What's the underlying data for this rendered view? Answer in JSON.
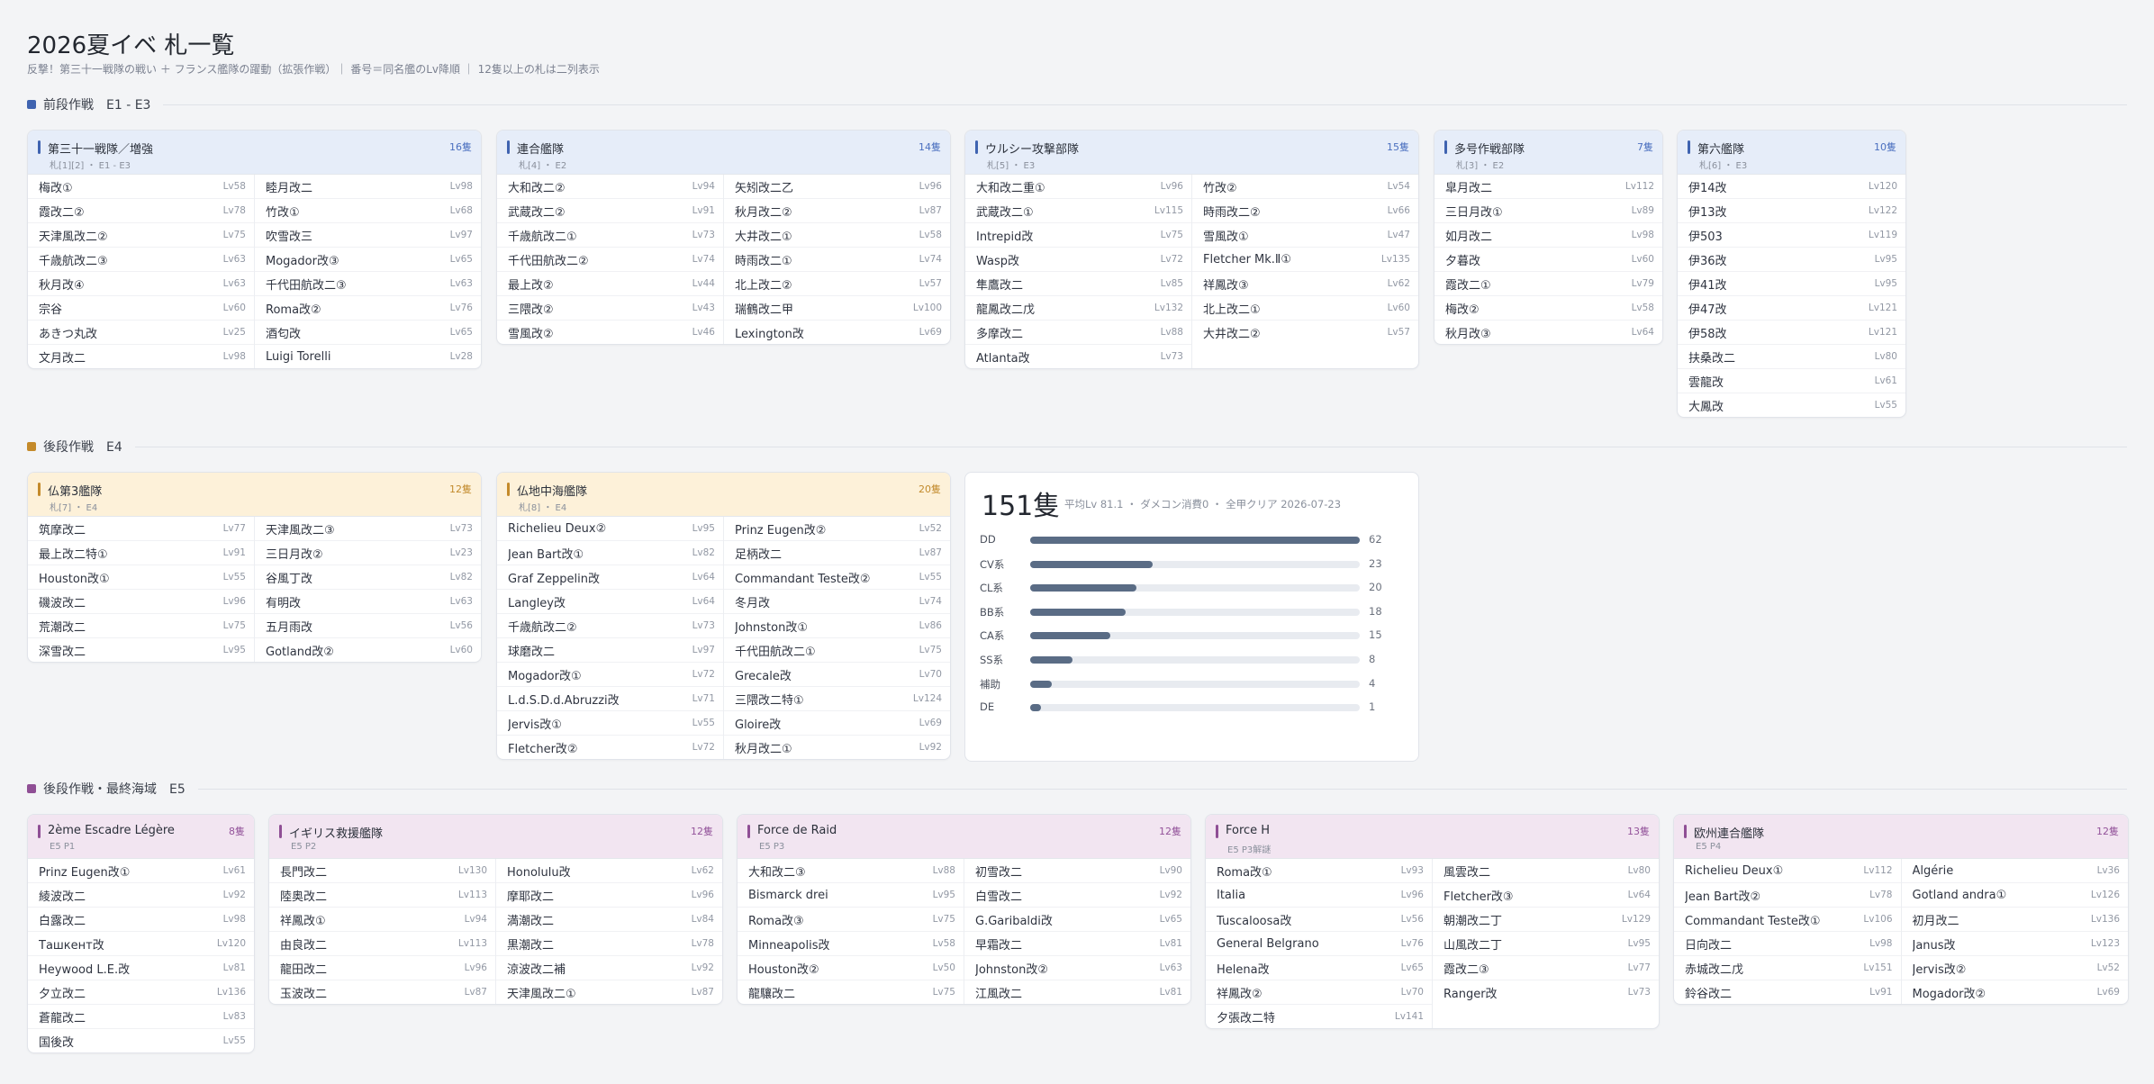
{
  "title": "2026夏イベ 札一覧",
  "subtitle": "反撃！第三十一戦隊の戦い ＋ フランス艦隊の躍動（拡張作戦）｜ 番号＝同名艦のLv降順 ｜ 12隻以上の札は二列表示",
  "colors": {
    "blue": "#3f63b0",
    "orange": "#c48a2a",
    "purple": "#8f4f95"
  },
  "sections": [
    {
      "label": "前段作戦　E1 - E3",
      "color": "#3f63b0"
    },
    {
      "label": "後段作戦　E4",
      "color": "#c48a2a"
    },
    {
      "label": "後段作戦・最終海域　E5",
      "color": "#8f4f95"
    }
  ],
  "cards": [
    {
      "theme": "blue",
      "name": "第三十一戦隊／増強",
      "sub": "札[1][2] ・ E1 - E3",
      "count": "16隻",
      "cols": [
        [
          [
            "梅改①",
            "Lv58"
          ],
          [
            "霞改二②",
            "Lv78"
          ],
          [
            "天津風改二②",
            "Lv75"
          ],
          [
            "千歳航改二③",
            "Lv63"
          ],
          [
            "秋月改④",
            "Lv63"
          ],
          [
            "宗谷",
            "Lv60"
          ],
          [
            "あきつ丸改",
            "Lv25"
          ],
          [
            "文月改二",
            "Lv98"
          ]
        ],
        [
          [
            "睦月改二",
            "Lv98"
          ],
          [
            "竹改①",
            "Lv68"
          ],
          [
            "吹雪改三",
            "Lv97"
          ],
          [
            "Mogador改③",
            "Lv65"
          ],
          [
            "千代田航改二③",
            "Lv63"
          ],
          [
            "Roma改②",
            "Lv76"
          ],
          [
            "酒匂改",
            "Lv65"
          ],
          [
            "Luigi Torelli",
            "Lv28"
          ]
        ]
      ]
    },
    {
      "theme": "blue",
      "name": "連合艦隊",
      "sub": "札[4] ・ E2",
      "count": "14隻",
      "cols": [
        [
          [
            "大和改二②",
            "Lv94"
          ],
          [
            "武蔵改二②",
            "Lv91"
          ],
          [
            "千歳航改二①",
            "Lv73"
          ],
          [
            "千代田航改二②",
            "Lv74"
          ],
          [
            "最上改②",
            "Lv44"
          ],
          [
            "三隈改②",
            "Lv43"
          ],
          [
            "雪風改②",
            "Lv46"
          ]
        ],
        [
          [
            "矢矧改二乙",
            "Lv96"
          ],
          [
            "秋月改二②",
            "Lv87"
          ],
          [
            "大井改二①",
            "Lv58"
          ],
          [
            "時雨改二①",
            "Lv74"
          ],
          [
            "北上改二②",
            "Lv57"
          ],
          [
            "瑞鶴改二甲",
            "Lv100"
          ],
          [
            "Lexington改",
            "Lv69"
          ]
        ]
      ]
    },
    {
      "theme": "blue",
      "name": "ウルシー攻撃部隊",
      "sub": "札[5] ・ E3",
      "count": "15隻",
      "cols": [
        [
          [
            "大和改二重①",
            "Lv96"
          ],
          [
            "武蔵改二①",
            "Lv115"
          ],
          [
            "Intrepid改",
            "Lv75"
          ],
          [
            "Wasp改",
            "Lv72"
          ],
          [
            "隼鷹改二",
            "Lv85"
          ],
          [
            "龍鳳改二戊",
            "Lv132"
          ],
          [
            "多摩改二",
            "Lv88"
          ],
          [
            "Atlanta改",
            "Lv73"
          ]
        ],
        [
          [
            "竹改②",
            "Lv54"
          ],
          [
            "時雨改二②",
            "Lv66"
          ],
          [
            "雪風改①",
            "Lv47"
          ],
          [
            "Fletcher Mk.Ⅱ①",
            "Lv135"
          ],
          [
            "祥鳳改③",
            "Lv62"
          ],
          [
            "北上改二①",
            "Lv60"
          ],
          [
            "大井改二②",
            "Lv57"
          ]
        ]
      ]
    },
    {
      "theme": "blue",
      "name": "多号作戦部隊",
      "sub": "札[3] ・ E2",
      "count": "7隻",
      "cols": [
        [
          [
            "皐月改二",
            "Lv112"
          ],
          [
            "三日月改①",
            "Lv89"
          ],
          [
            "如月改二",
            "Lv98"
          ],
          [
            "夕暮改",
            "Lv60"
          ],
          [
            "霞改二①",
            "Lv79"
          ],
          [
            "梅改②",
            "Lv58"
          ],
          [
            "秋月改③",
            "Lv64"
          ]
        ]
      ]
    },
    {
      "theme": "blue",
      "name": "第六艦隊",
      "sub": "札[6] ・ E3",
      "count": "10隻",
      "cols": [
        [
          [
            "伊14改",
            "Lv120"
          ],
          [
            "伊13改",
            "Lv122"
          ],
          [
            "伊503",
            "Lv119"
          ],
          [
            "伊36改",
            "Lv95"
          ],
          [
            "伊41改",
            "Lv95"
          ],
          [
            "伊47改",
            "Lv121"
          ],
          [
            "伊58改",
            "Lv121"
          ],
          [
            "扶桑改二",
            "Lv80"
          ],
          [
            "雲龍改",
            "Lv61"
          ],
          [
            "大鳳改",
            "Lv55"
          ]
        ]
      ]
    },
    {
      "theme": "orange",
      "name": "仏第3艦隊",
      "sub": "札[7] ・ E4",
      "count": "12隻",
      "cols": [
        [
          [
            "筑摩改二",
            "Lv77"
          ],
          [
            "最上改二特①",
            "Lv91"
          ],
          [
            "Houston改①",
            "Lv55"
          ],
          [
            "磯波改二",
            "Lv96"
          ],
          [
            "荒潮改二",
            "Lv75"
          ],
          [
            "深雪改二",
            "Lv95"
          ]
        ],
        [
          [
            "天津風改二③",
            "Lv73"
          ],
          [
            "三日月改②",
            "Lv23"
          ],
          [
            "谷風丁改",
            "Lv82"
          ],
          [
            "有明改",
            "Lv63"
          ],
          [
            "五月雨改",
            "Lv56"
          ],
          [
            "Gotland改②",
            "Lv60"
          ]
        ]
      ]
    },
    {
      "theme": "orange",
      "name": "仏地中海艦隊",
      "sub": "札[8] ・ E4",
      "count": "20隻",
      "cols": [
        [
          [
            "Richelieu Deux②",
            "Lv95"
          ],
          [
            "Jean Bart改①",
            "Lv82"
          ],
          [
            "Graf Zeppelin改",
            "Lv64"
          ],
          [
            "Langley改",
            "Lv64"
          ],
          [
            "千歳航改二②",
            "Lv73"
          ],
          [
            "球磨改二",
            "Lv97"
          ],
          [
            "Mogador改①",
            "Lv72"
          ],
          [
            "L.d.S.D.d.Abruzzi改",
            "Lv71"
          ],
          [
            "Jervis改①",
            "Lv55"
          ],
          [
            "Fletcher改②",
            "Lv72"
          ]
        ],
        [
          [
            "Prinz Eugen改②",
            "Lv52"
          ],
          [
            "足柄改二",
            "Lv87"
          ],
          [
            "Commandant Teste改②",
            "Lv55"
          ],
          [
            "冬月改",
            "Lv74"
          ],
          [
            "Johnston改①",
            "Lv86"
          ],
          [
            "千代田航改二①",
            "Lv75"
          ],
          [
            "Grecale改",
            "Lv70"
          ],
          [
            "三隈改二特①",
            "Lv124"
          ],
          [
            "Gloire改",
            "Lv69"
          ],
          [
            "秋月改二①",
            "Lv92"
          ]
        ]
      ]
    },
    {
      "theme": "purple",
      "name": "2ème Escadre Légère",
      "sub": "E5 P1",
      "count": "8隻",
      "cols": [
        [
          [
            "Prinz Eugen改①",
            "Lv61"
          ],
          [
            "綾波改二",
            "Lv92"
          ],
          [
            "白露改二",
            "Lv98"
          ],
          [
            "Ташкент改",
            "Lv120"
          ],
          [
            "Heywood L.E.改",
            "Lv81"
          ],
          [
            "夕立改二",
            "Lv136"
          ],
          [
            "蒼龍改二",
            "Lv83"
          ],
          [
            "国後改",
            "Lv55"
          ]
        ]
      ]
    },
    {
      "theme": "purple",
      "name": "イギリス救援艦隊",
      "sub": "E5 P2",
      "count": "12隻",
      "cols": [
        [
          [
            "長門改二",
            "Lv130"
          ],
          [
            "陸奥改二",
            "Lv113"
          ],
          [
            "祥鳳改①",
            "Lv94"
          ],
          [
            "由良改二",
            "Lv113"
          ],
          [
            "龍田改二",
            "Lv96"
          ],
          [
            "玉波改二",
            "Lv87"
          ]
        ],
        [
          [
            "Honolulu改",
            "Lv62"
          ],
          [
            "摩耶改二",
            "Lv96"
          ],
          [
            "満潮改二",
            "Lv84"
          ],
          [
            "黒潮改二",
            "Lv78"
          ],
          [
            "涼波改二補",
            "Lv92"
          ],
          [
            "天津風改二①",
            "Lv87"
          ]
        ]
      ]
    },
    {
      "theme": "purple",
      "name": "Force de Raid",
      "sub": "E5 P3",
      "count": "12隻",
      "cols": [
        [
          [
            "大和改二③",
            "Lv88"
          ],
          [
            "Bismarck drei",
            "Lv95"
          ],
          [
            "Roma改③",
            "Lv75"
          ],
          [
            "Minneapolis改",
            "Lv58"
          ],
          [
            "Houston改②",
            "Lv50"
          ],
          [
            "龍驤改二",
            "Lv75"
          ]
        ],
        [
          [
            "初雪改二",
            "Lv90"
          ],
          [
            "白雪改二",
            "Lv92"
          ],
          [
            "G.Garibaldi改",
            "Lv65"
          ],
          [
            "早霜改二",
            "Lv81"
          ],
          [
            "Johnston改②",
            "Lv63"
          ],
          [
            "江風改二",
            "Lv81"
          ]
        ]
      ]
    },
    {
      "theme": "purple",
      "name": "Force H",
      "sub": "E5 P3解謎",
      "count": "13隻",
      "cols": [
        [
          [
            "Roma改①",
            "Lv93"
          ],
          [
            "Italia",
            "Lv96"
          ],
          [
            "Tuscaloosa改",
            "Lv56"
          ],
          [
            "General Belgrano",
            "Lv76"
          ],
          [
            "Helena改",
            "Lv65"
          ],
          [
            "祥鳳改②",
            "Lv70"
          ],
          [
            "夕張改二特",
            "Lv141"
          ]
        ],
        [
          [
            "風雲改二",
            "Lv80"
          ],
          [
            "Fletcher改③",
            "Lv64"
          ],
          [
            "朝潮改二丁",
            "Lv129"
          ],
          [
            "山風改二丁",
            "Lv95"
          ],
          [
            "霞改二③",
            "Lv77"
          ],
          [
            "Ranger改",
            "Lv73"
          ]
        ]
      ]
    },
    {
      "theme": "purple",
      "name": "欧州連合艦隊",
      "sub": "E5 P4",
      "count": "12隻",
      "cols": [
        [
          [
            "Richelieu Deux①",
            "Lv112"
          ],
          [
            "Jean Bart改②",
            "Lv78"
          ],
          [
            "Commandant Teste改①",
            "Lv106"
          ],
          [
            "日向改二",
            "Lv98"
          ],
          [
            "赤城改二戊",
            "Lv151"
          ],
          [
            "鈴谷改二",
            "Lv91"
          ]
        ],
        [
          [
            "Algérie",
            "Lv36"
          ],
          [
            "Gotland andra①",
            "Lv126"
          ],
          [
            "初月改二",
            "Lv136"
          ],
          [
            "Janus改",
            "Lv123"
          ],
          [
            "Jervis改②",
            "Lv52"
          ],
          [
            "Mogador改②",
            "Lv69"
          ]
        ]
      ]
    }
  ],
  "stats": {
    "total": "151隻",
    "meta": "平均Lv 81.1 ・ ダメコン消費0 ・ 全甲クリア 2026-07-23",
    "max": 62,
    "rows": [
      {
        "label": "DD",
        "value": 62
      },
      {
        "label": "CV系",
        "value": 23
      },
      {
        "label": "CL系",
        "value": 20
      },
      {
        "label": "BB系",
        "value": 18
      },
      {
        "label": "CA系",
        "value": 15
      },
      {
        "label": "SS系",
        "value": 8
      },
      {
        "label": "補助",
        "value": 4
      },
      {
        "label": "DE",
        "value": 1
      }
    ]
  }
}
